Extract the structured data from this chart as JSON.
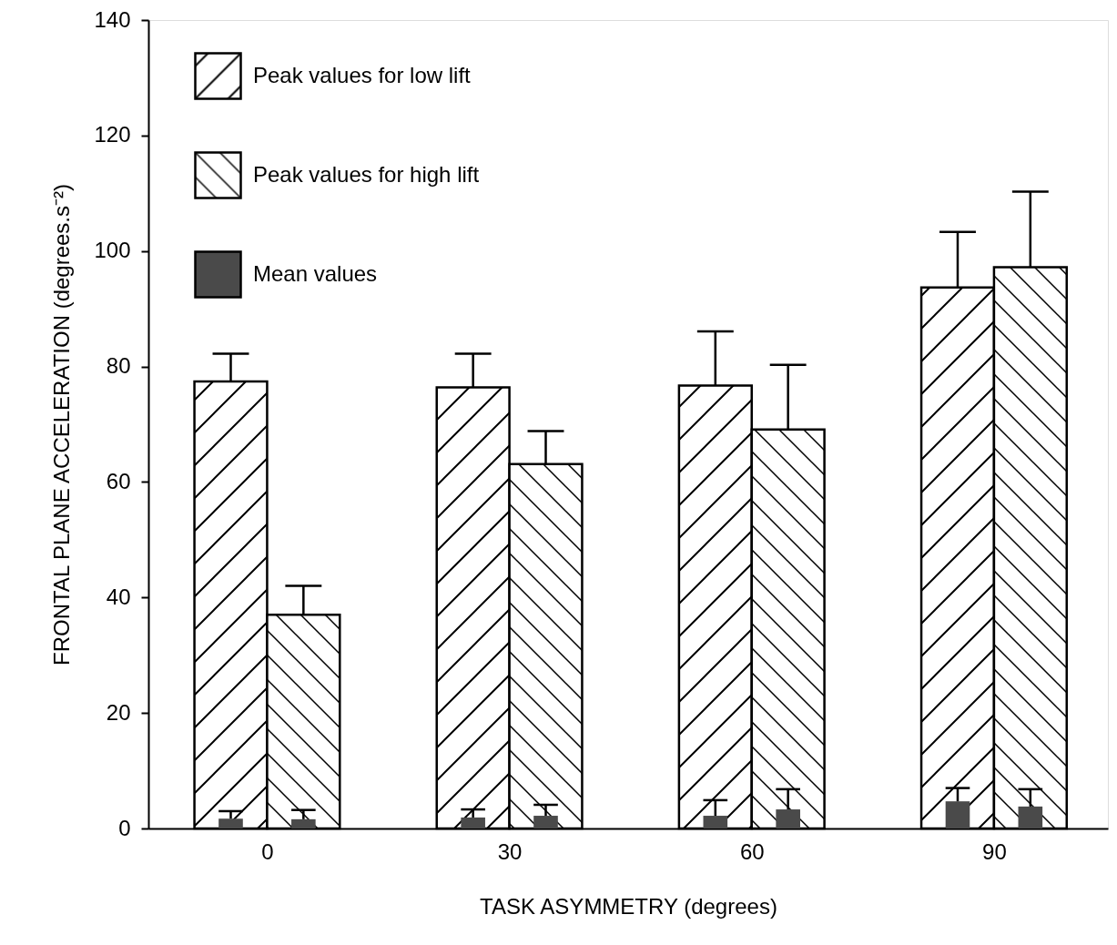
{
  "chart_data": {
    "type": "bar",
    "xlabel": "TASK ASYMMETRY (degrees)",
    "ylabel": "FRONTAL PLANE ACCELERATION (degrees.s⁻²)",
    "categories": [
      "0",
      "30",
      "60",
      "90"
    ],
    "ylim": [
      0,
      140
    ],
    "yticks": [
      0,
      20,
      40,
      60,
      80,
      100,
      120,
      140
    ],
    "grid": false,
    "legend": "top left",
    "series": [
      {
        "name": "Peak values for low lift",
        "color": "#000000",
        "values": [
          77.4,
          76.4,
          76.7,
          93.7
        ],
        "errors": [
          [
            77.4,
            82.2
          ],
          [
            76.4,
            82.2
          ],
          [
            76.7,
            86.1
          ],
          [
            93.7,
            103.3
          ]
        ]
      },
      {
        "name": "Peak values for high lift",
        "color": "#000000",
        "values": [
          37.0,
          63.1,
          69.1,
          97.2
        ],
        "errors": [
          [
            37.0,
            42.0
          ],
          [
            63.1,
            68.8
          ],
          [
            69.1,
            80.3
          ],
          [
            97.2,
            110.3
          ]
        ]
      },
      {
        "name": "Mean values",
        "color": "#4a4a4a",
        "values": [
          1.7,
          1.9,
          2.2,
          4.7
        ],
        "errors": [
          [
            1.7,
            3.0
          ],
          [
            1.9,
            3.3
          ],
          [
            2.2,
            4.9
          ],
          [
            4.7,
            7.0
          ]
        ]
      },
      {
        "color": "#4a4a4a",
        "values": [
          1.6,
          2.2,
          3.3,
          3.8
        ],
        "errors": [
          [
            1.6,
            3.2
          ],
          [
            2.2,
            4.1
          ],
          [
            3.3,
            6.8
          ],
          [
            3.8,
            6.8
          ]
        ]
      }
    ]
  }
}
